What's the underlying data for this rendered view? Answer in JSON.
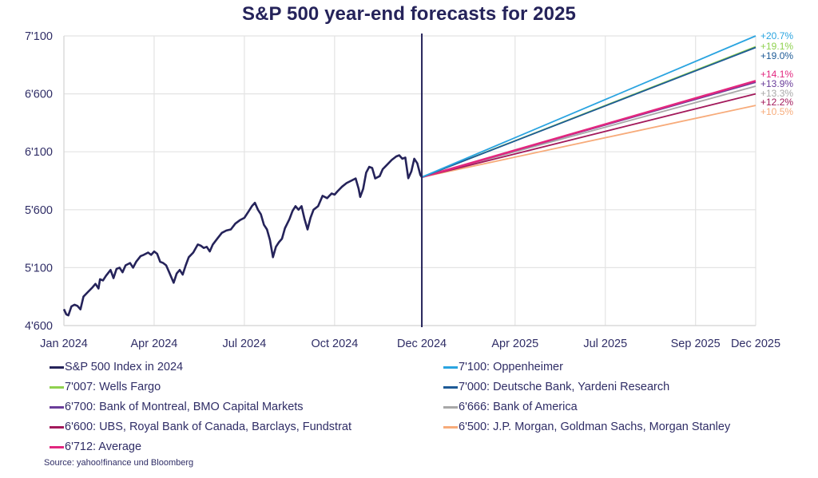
{
  "chart_data": {
    "type": "line",
    "title": "S&P 500 year-end forecasts for 2025",
    "xlabel": "",
    "ylabel": "",
    "ylim": [
      4600,
      7100
    ],
    "yticks": [
      4600,
      5100,
      5600,
      6100,
      6600,
      7100
    ],
    "ytick_labels": [
      "4'600",
      "5'100",
      "5'600",
      "6'100",
      "6'600",
      "7'100"
    ],
    "xlim_months": [
      0,
      23
    ],
    "xticks": [
      {
        "month": 0,
        "label": "Jan 2024"
      },
      {
        "month": 3,
        "label": "Apr 2024"
      },
      {
        "month": 6,
        "label": "Jul 2024"
      },
      {
        "month": 9,
        "label": "Oct 2024"
      },
      {
        "month": 11.9,
        "label": "Dec 2024"
      },
      {
        "month": 15,
        "label": "Apr 2025"
      },
      {
        "month": 18,
        "label": "Jul 2025"
      },
      {
        "month": 21,
        "label": "Sep 2025"
      },
      {
        "month": 23,
        "label": "Dec 2025"
      }
    ],
    "divider_month": 11.9,
    "grid": true,
    "legend_position": "bottom",
    "forecast_start_value": 5881,
    "series_2024": {
      "name": "S&P 500 Index in 2024",
      "color": "#25235a",
      "points": [
        [
          0.0,
          4742
        ],
        [
          0.08,
          4697
        ],
        [
          0.15,
          4688
        ],
        [
          0.25,
          4765
        ],
        [
          0.35,
          4780
        ],
        [
          0.45,
          4770
        ],
        [
          0.55,
          4740
        ],
        [
          0.65,
          4850
        ],
        [
          0.8,
          4890
        ],
        [
          0.95,
          4930
        ],
        [
          1.05,
          4960
        ],
        [
          1.15,
          4920
        ],
        [
          1.2,
          5000
        ],
        [
          1.3,
          4990
        ],
        [
          1.4,
          5030
        ],
        [
          1.55,
          5080
        ],
        [
          1.65,
          5010
        ],
        [
          1.75,
          5090
        ],
        [
          1.85,
          5100
        ],
        [
          1.95,
          5060
        ],
        [
          2.05,
          5120
        ],
        [
          2.2,
          5140
        ],
        [
          2.3,
          5100
        ],
        [
          2.4,
          5150
        ],
        [
          2.55,
          5200
        ],
        [
          2.65,
          5210
        ],
        [
          2.8,
          5230
        ],
        [
          2.9,
          5210
        ],
        [
          3.0,
          5240
        ],
        [
          3.1,
          5220
        ],
        [
          3.2,
          5150
        ],
        [
          3.3,
          5140
        ],
        [
          3.4,
          5120
        ],
        [
          3.5,
          5060
        ],
        [
          3.6,
          5000
        ],
        [
          3.65,
          4970
        ],
        [
          3.75,
          5050
        ],
        [
          3.85,
          5080
        ],
        [
          3.95,
          5040
        ],
        [
          4.05,
          5120
        ],
        [
          4.15,
          5190
        ],
        [
          4.3,
          5230
        ],
        [
          4.45,
          5300
        ],
        [
          4.55,
          5290
        ],
        [
          4.65,
          5270
        ],
        [
          4.75,
          5280
        ],
        [
          4.85,
          5240
        ],
        [
          4.95,
          5300
        ],
        [
          5.1,
          5350
        ],
        [
          5.25,
          5400
        ],
        [
          5.4,
          5420
        ],
        [
          5.55,
          5430
        ],
        [
          5.7,
          5480
        ],
        [
          5.85,
          5510
        ],
        [
          6.0,
          5530
        ],
        [
          6.15,
          5590
        ],
        [
          6.25,
          5630
        ],
        [
          6.35,
          5660
        ],
        [
          6.45,
          5600
        ],
        [
          6.55,
          5560
        ],
        [
          6.65,
          5470
        ],
        [
          6.75,
          5430
        ],
        [
          6.85,
          5340
        ],
        [
          6.95,
          5190
        ],
        [
          7.05,
          5280
        ],
        [
          7.15,
          5320
        ],
        [
          7.25,
          5350
        ],
        [
          7.35,
          5440
        ],
        [
          7.5,
          5520
        ],
        [
          7.6,
          5590
        ],
        [
          7.7,
          5630
        ],
        [
          7.8,
          5600
        ],
        [
          7.9,
          5630
        ],
        [
          8.0,
          5520
        ],
        [
          8.1,
          5430
        ],
        [
          8.2,
          5530
        ],
        [
          8.3,
          5600
        ],
        [
          8.45,
          5630
        ],
        [
          8.6,
          5720
        ],
        [
          8.75,
          5700
        ],
        [
          8.9,
          5740
        ],
        [
          9.0,
          5730
        ],
        [
          9.1,
          5760
        ],
        [
          9.25,
          5800
        ],
        [
          9.4,
          5830
        ],
        [
          9.55,
          5850
        ],
        [
          9.7,
          5870
        ],
        [
          9.8,
          5780
        ],
        [
          9.85,
          5710
        ],
        [
          9.95,
          5780
        ],
        [
          10.05,
          5920
        ],
        [
          10.15,
          5970
        ],
        [
          10.25,
          5960
        ],
        [
          10.35,
          5870
        ],
        [
          10.5,
          5890
        ],
        [
          10.6,
          5950
        ],
        [
          10.75,
          5990
        ],
        [
          10.9,
          6030
        ],
        [
          11.05,
          6060
        ],
        [
          11.15,
          6070
        ],
        [
          11.25,
          6040
        ],
        [
          11.35,
          6050
        ],
        [
          11.45,
          5872
        ],
        [
          11.55,
          5930
        ],
        [
          11.65,
          6040
        ],
        [
          11.75,
          6000
        ],
        [
          11.85,
          5900
        ],
        [
          11.9,
          5881
        ]
      ]
    },
    "forecasts": [
      {
        "name": "7'100: Oppenheimer",
        "target": 7100,
        "change_label": "+20.7%",
        "color": "#2aa4e0"
      },
      {
        "name": "7'007: Wells Fargo",
        "target": 7007,
        "change_label": "+19.1%",
        "color": "#8fd14f"
      },
      {
        "name": "7'000: Deutsche Bank, Yardeni Research",
        "target": 7000,
        "change_label": "+19.0%",
        "color": "#1d5a96"
      },
      {
        "name": "6'712: Average",
        "target": 6712,
        "change_label": "+14.1%",
        "color": "#e2277f"
      },
      {
        "name": "6'700: Bank of Montreal, BMO Capital Markets",
        "target": 6700,
        "change_label": "+13.9%",
        "color": "#6a3d9a"
      },
      {
        "name": "6'666: Bank of America",
        "target": 6666,
        "change_label": "+13.3%",
        "color": "#a8a8a8"
      },
      {
        "name": "6'600: UBS, Royal Bank of Canada, Barclays, Fundstrat",
        "target": 6600,
        "change_label": "+12.2%",
        "color": "#a3195b"
      },
      {
        "name": "6'500: J.P. Morgan, Goldman Sachs, Morgan Stanley",
        "target": 6500,
        "change_label": "+10.5%",
        "color": "#f7ab7a"
      }
    ]
  },
  "legend": {
    "left": [
      {
        "label": "S&P 500 Index in 2024",
        "color": "#25235a"
      },
      {
        "label": "7'007: Wells Fargo",
        "color": "#8fd14f"
      },
      {
        "label": "6'700: Bank of Montreal, BMO Capital Markets",
        "color": "#6a3d9a"
      },
      {
        "label": "6'600: UBS, Royal Bank of Canada, Barclays, Fundstrat",
        "color": "#a3195b"
      },
      {
        "label": "6'712: Average",
        "color": "#e2277f"
      }
    ],
    "right": [
      {
        "label": "7'100: Oppenheimer",
        "color": "#2aa4e0"
      },
      {
        "label": "7'000: Deutsche Bank, Yardeni Research",
        "color": "#1d5a96"
      },
      {
        "label": "6'666: Bank of America",
        "color": "#a8a8a8"
      },
      {
        "label": "6'500: J.P. Morgan, Goldman Sachs, Morgan Stanley",
        "color": "#f7ab7a"
      }
    ]
  },
  "source": "Source: yahoo!finance und Bloomberg"
}
